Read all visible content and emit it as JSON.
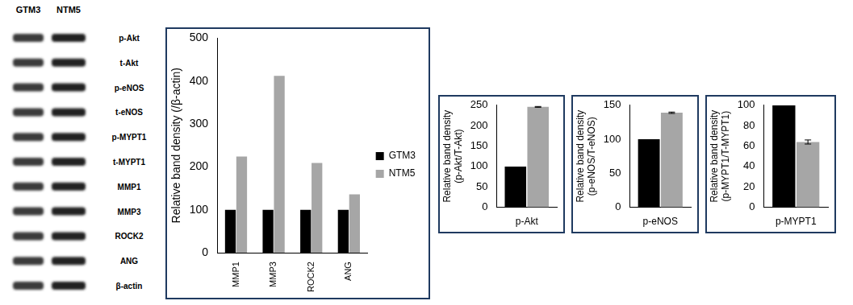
{
  "blot": {
    "columns": [
      "GTM3",
      "NTM5"
    ],
    "rows": [
      "p-Akt",
      "t-Akt",
      "p-eNOS",
      "t-eNOS",
      "p-MYPT1",
      "t-MYPT1",
      "MMP1",
      "MMP3",
      "ROCK2",
      "ANG",
      "β-actin"
    ]
  },
  "chart_data": [
    {
      "type": "bar",
      "y_label": "Relative band density (/β-actin)",
      "categories": [
        "MMP1",
        "MMP3",
        "ROCK2",
        "ANG"
      ],
      "series": [
        {
          "name": "GTM3",
          "color": "#000000",
          "values": [
            100,
            100,
            100,
            100
          ]
        },
        {
          "name": "NTM5",
          "color": "#a6a6a6",
          "values": [
            224,
            412,
            209,
            136
          ]
        }
      ],
      "ylim": [
        0,
        500
      ],
      "yticks": [
        0,
        100,
        200,
        300,
        400,
        500
      ],
      "legend": "right",
      "grid": false
    },
    {
      "type": "bar",
      "y_label": "Relative band density (p-Akt/T-Akt)",
      "categories": [
        "p-Akt"
      ],
      "series": [
        {
          "color": "#000000",
          "values": [
            100
          ]
        },
        {
          "color": "#a6a6a6",
          "values": [
            246
          ],
          "errors": [
            1
          ]
        }
      ],
      "ylim": [
        0,
        250
      ],
      "yticks": [
        0,
        50,
        100,
        150,
        200,
        250
      ],
      "grid": false
    },
    {
      "type": "bar",
      "y_label": "Relative band density (p-eNOS/T-eNOS)",
      "categories": [
        "p-eNOS"
      ],
      "series": [
        {
          "color": "#000000",
          "values": [
            100
          ]
        },
        {
          "color": "#a6a6a6",
          "values": [
            139
          ],
          "errors": [
            1
          ]
        }
      ],
      "ylim": [
        0,
        150
      ],
      "yticks": [
        0,
        50,
        100,
        150
      ],
      "grid": false
    },
    {
      "type": "bar",
      "y_label": "Relative band density (p-MYPT1/T-MYPT1)",
      "categories": [
        "p-MYPT1"
      ],
      "series": [
        {
          "color": "#000000",
          "values": [
            100
          ]
        },
        {
          "color": "#a6a6a6",
          "values": [
            64
          ],
          "errors": [
            2
          ]
        }
      ],
      "ylim": [
        0,
        100
      ],
      "yticks": [
        0,
        20,
        40,
        60,
        80,
        100
      ],
      "grid": false
    }
  ]
}
